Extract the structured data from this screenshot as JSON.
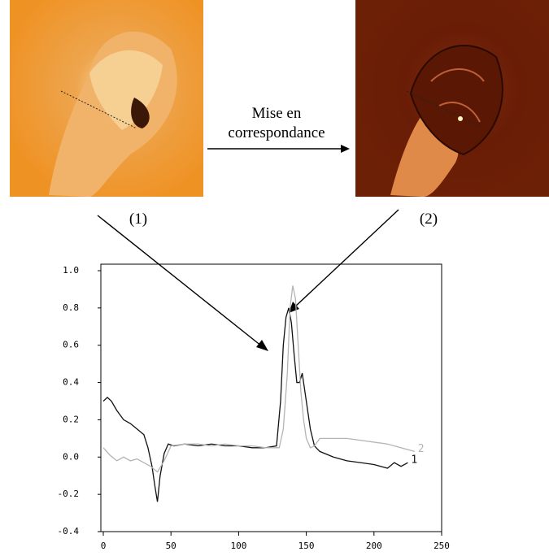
{
  "chart_data": {
    "type": "line",
    "annotations": [
      "Mise en correspondance",
      "(1)",
      "(2)"
    ],
    "xlim": [
      0,
      250
    ],
    "xticks": [
      0,
      50,
      100,
      150,
      200,
      250
    ],
    "ylim": [
      -0.4,
      1.0
    ],
    "yticks": [
      -0.4,
      -0.2,
      {
        "value": 0,
        "label": "0.0"
      },
      0.2,
      0.4,
      0.6,
      0.8,
      {
        "value": 1,
        "label": "1.0"
      }
    ],
    "series": [
      {
        "name": "1",
        "color": "#111111",
        "x": [
          0,
          3,
          6,
          10,
          15,
          20,
          25,
          30,
          33,
          36,
          38,
          40,
          42,
          45,
          48,
          52,
          60,
          70,
          80,
          90,
          100,
          110,
          120,
          128,
          131,
          133,
          135,
          137,
          139,
          141,
          143,
          145,
          147,
          149,
          151,
          153,
          156,
          160,
          170,
          180,
          190,
          200,
          210,
          215,
          220,
          225
        ],
        "values": [
          0.3,
          0.32,
          0.3,
          0.25,
          0.2,
          0.18,
          0.15,
          0.12,
          0.05,
          -0.05,
          -0.15,
          -0.24,
          -0.1,
          0.02,
          0.07,
          0.06,
          0.07,
          0.06,
          0.07,
          0.06,
          0.06,
          0.05,
          0.05,
          0.06,
          0.3,
          0.6,
          0.75,
          0.8,
          0.72,
          0.55,
          0.4,
          0.4,
          0.45,
          0.35,
          0.25,
          0.15,
          0.06,
          0.03,
          0.0,
          -0.02,
          -0.03,
          -0.04,
          -0.06,
          -0.03,
          -0.05,
          -0.03
        ]
      },
      {
        "name": "2",
        "color": "#b4b4b4",
        "x": [
          0,
          5,
          10,
          15,
          20,
          25,
          30,
          35,
          40,
          45,
          50,
          60,
          70,
          80,
          90,
          100,
          110,
          120,
          130,
          133,
          136,
          138,
          140,
          142,
          144,
          146,
          148,
          150,
          153,
          156,
          160,
          170,
          180,
          190,
          200,
          210,
          220,
          230
        ],
        "values": [
          0.05,
          0.01,
          -0.02,
          0.0,
          -0.02,
          -0.01,
          -0.03,
          -0.05,
          -0.08,
          -0.02,
          0.06,
          0.07,
          0.07,
          0.06,
          0.07,
          0.06,
          0.06,
          0.05,
          0.05,
          0.15,
          0.45,
          0.8,
          0.92,
          0.85,
          0.6,
          0.35,
          0.2,
          0.1,
          0.05,
          0.06,
          0.1,
          0.1,
          0.1,
          0.09,
          0.08,
          0.07,
          0.05,
          0.03
        ]
      }
    ]
  }
}
